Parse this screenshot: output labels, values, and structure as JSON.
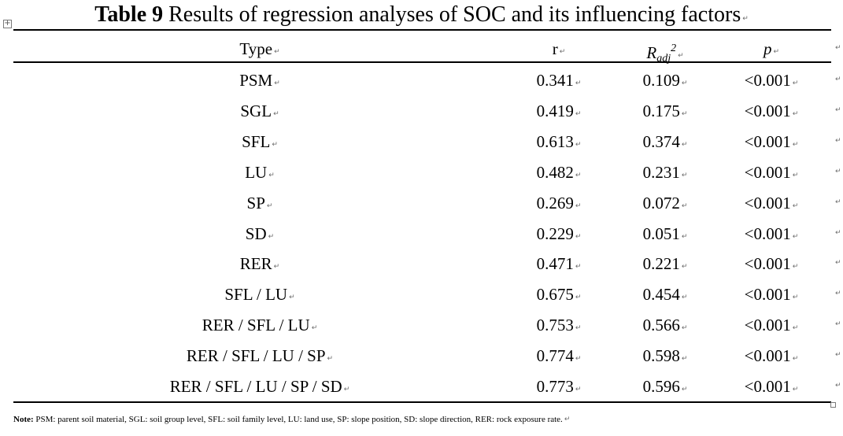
{
  "title": {
    "label": "Table 9",
    "text": "Results of regression analyses of SOC and its influencing factors"
  },
  "header": {
    "type": "Type",
    "r": "r",
    "radj_main": "R",
    "radj_sub": "adj",
    "radj_sup": "2",
    "p": "p"
  },
  "rows": [
    {
      "type": "PSM",
      "r": "0.341",
      "radj": "0.109",
      "p": "<0.001"
    },
    {
      "type": "SGL",
      "r": "0.419",
      "radj": "0.175",
      "p": "<0.001"
    },
    {
      "type": "SFL",
      "r": "0.613",
      "radj": "0.374",
      "p": "<0.001"
    },
    {
      "type": "LU",
      "r": "0.482",
      "radj": "0.231",
      "p": "<0.001"
    },
    {
      "type": "SP",
      "r": "0.269",
      "radj": "0.072",
      "p": "<0.001"
    },
    {
      "type": "SD",
      "r": "0.229",
      "radj": "0.051",
      "p": "<0.001"
    },
    {
      "type": "RER",
      "r": "0.471",
      "radj": "0.221",
      "p": "<0.001"
    },
    {
      "type": "SFL / LU",
      "r": "0.675",
      "radj": "0.454",
      "p": "<0.001"
    },
    {
      "type": "RER / SFL / LU",
      "r": "0.753",
      "radj": "0.566",
      "p": "<0.001"
    },
    {
      "type": "RER / SFL / LU / SP",
      "r": "0.774",
      "radj": "0.598",
      "p": "<0.001"
    },
    {
      "type": "RER / SFL / LU / SP / SD",
      "r": "0.773",
      "radj": "0.596",
      "p": "<0.001"
    }
  ],
  "note": {
    "label": "Note:",
    "text": "PSM: parent soil material, SGL: soil group level, SFL: soil family level, LU: land use, SP: slope position, SD: slope direction, RER: rock exposure rate."
  },
  "marks": {
    "paragraph": "↵",
    "table_move": "+"
  }
}
